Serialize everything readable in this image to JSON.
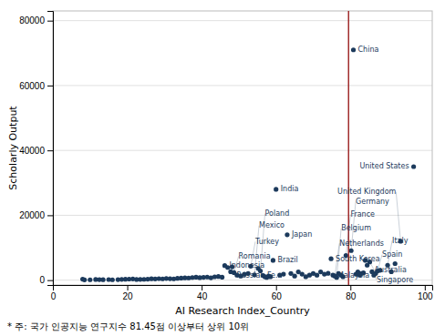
{
  "chart_data": {
    "type": "scatter",
    "xlabel": "AI Research Index_Country",
    "ylabel": "Scholarly Output",
    "note": "* 주: 국가 인공지능 연구지수 81.45점 이상부터 상위 10위",
    "xlim": [
      0,
      102
    ],
    "ylim": [
      -1500,
      83000
    ],
    "xticks": [
      0,
      20,
      40,
      60,
      80,
      100
    ],
    "yticks": [
      0,
      20000,
      40000,
      60000,
      80000
    ],
    "grid": true,
    "color": "#1C3A5C",
    "vline": {
      "x": 79.5,
      "color": "#9B2020"
    },
    "x": [
      8.0,
      8.5,
      10.0,
      11.5,
      12.5,
      13.5,
      15.0,
      16.0,
      17.5,
      18.5,
      19.5,
      20.5,
      21.5,
      22.5,
      23.5,
      24.5,
      25.5,
      26.5,
      27.5,
      28.5,
      29.5,
      30.5,
      31.5,
      32.5,
      33.5,
      34.5,
      35.5,
      36.5,
      37.5,
      38.5,
      39.5,
      40.5,
      41.5,
      42.5,
      43.5,
      44.5,
      45.5,
      46.2,
      47.0,
      47.8,
      48.2,
      48.7,
      49.5,
      50.5,
      51.5,
      52.5,
      53.2,
      54.2,
      55.2,
      55.8,
      56.5,
      57.0,
      57.5,
      58.0,
      58.5,
      59.2,
      60.0,
      61.0,
      62.0,
      63.0,
      64.0,
      65.0,
      66.0,
      67.0,
      68.0,
      69.0,
      70.0,
      71.0,
      72.0,
      73.0,
      74.0,
      74.8,
      75.3,
      75.8,
      76.3,
      76.8,
      77.5,
      78.0,
      78.8,
      80.2,
      80.8,
      81.5,
      82.0,
      82.5,
      83.0,
      83.5,
      84.0,
      84.5,
      85.2,
      85.8,
      86.3,
      86.8,
      87.3,
      88.0,
      90.0,
      91.0,
      92.0,
      93.5,
      97.0
    ],
    "values": [
      300,
      80,
      120,
      200,
      150,
      130,
      180,
      110,
      160,
      220,
      280,
      320,
      370,
      200,
      230,
      260,
      310,
      420,
      370,
      470,
      400,
      520,
      440,
      400,
      560,
      620,
      710,
      670,
      820,
      920,
      770,
      870,
      960,
      720,
      1020,
      1120,
      920,
      4500,
      3900,
      2600,
      4100,
      2300,
      1550,
      1250,
      1820,
      2050,
      4300,
      1650,
      3600,
      2850,
      1450,
      1050,
      830,
      1250,
      1050,
      6100,
      28000,
      1550,
      1850,
      14000,
      2050,
      1250,
      2550,
      1850,
      1050,
      1550,
      2050,
      1550,
      2550,
      1850,
      2100,
      6600,
      1550,
      1250,
      850,
      2050,
      1550,
      1050,
      7600,
      9100,
      71000,
      1850,
      2550,
      1550,
      2050,
      2250,
      6100,
      4600,
      5600,
      2600,
      1550,
      2050,
      2850,
      3050,
      4600,
      2600,
      5100,
      12000,
      35000
    ],
    "labels": [
      null,
      null,
      null,
      null,
      null,
      null,
      null,
      null,
      null,
      null,
      null,
      null,
      null,
      null,
      null,
      null,
      null,
      null,
      null,
      null,
      null,
      null,
      null,
      null,
      null,
      null,
      null,
      null,
      null,
      null,
      null,
      null,
      null,
      null,
      null,
      null,
      null,
      "Indonesia",
      null,
      null,
      "Russian Fe...",
      "Romania",
      null,
      null,
      null,
      null,
      "Turkey",
      "Mexico",
      null,
      "Poland",
      null,
      null,
      null,
      null,
      null,
      "Brazil",
      "India",
      null,
      null,
      "Japan",
      null,
      null,
      null,
      null,
      null,
      null,
      null,
      null,
      null,
      null,
      null,
      "South Korea",
      "Malaysia",
      "Netherlands",
      "Belgium",
      null,
      null,
      null,
      "France",
      "Germany",
      "China",
      null,
      null,
      null,
      null,
      null,
      null,
      null,
      "Australia",
      "Singapore",
      null,
      null,
      "Spain",
      null,
      "Italy",
      null,
      null,
      "United Kingdom",
      "United States"
    ]
  }
}
